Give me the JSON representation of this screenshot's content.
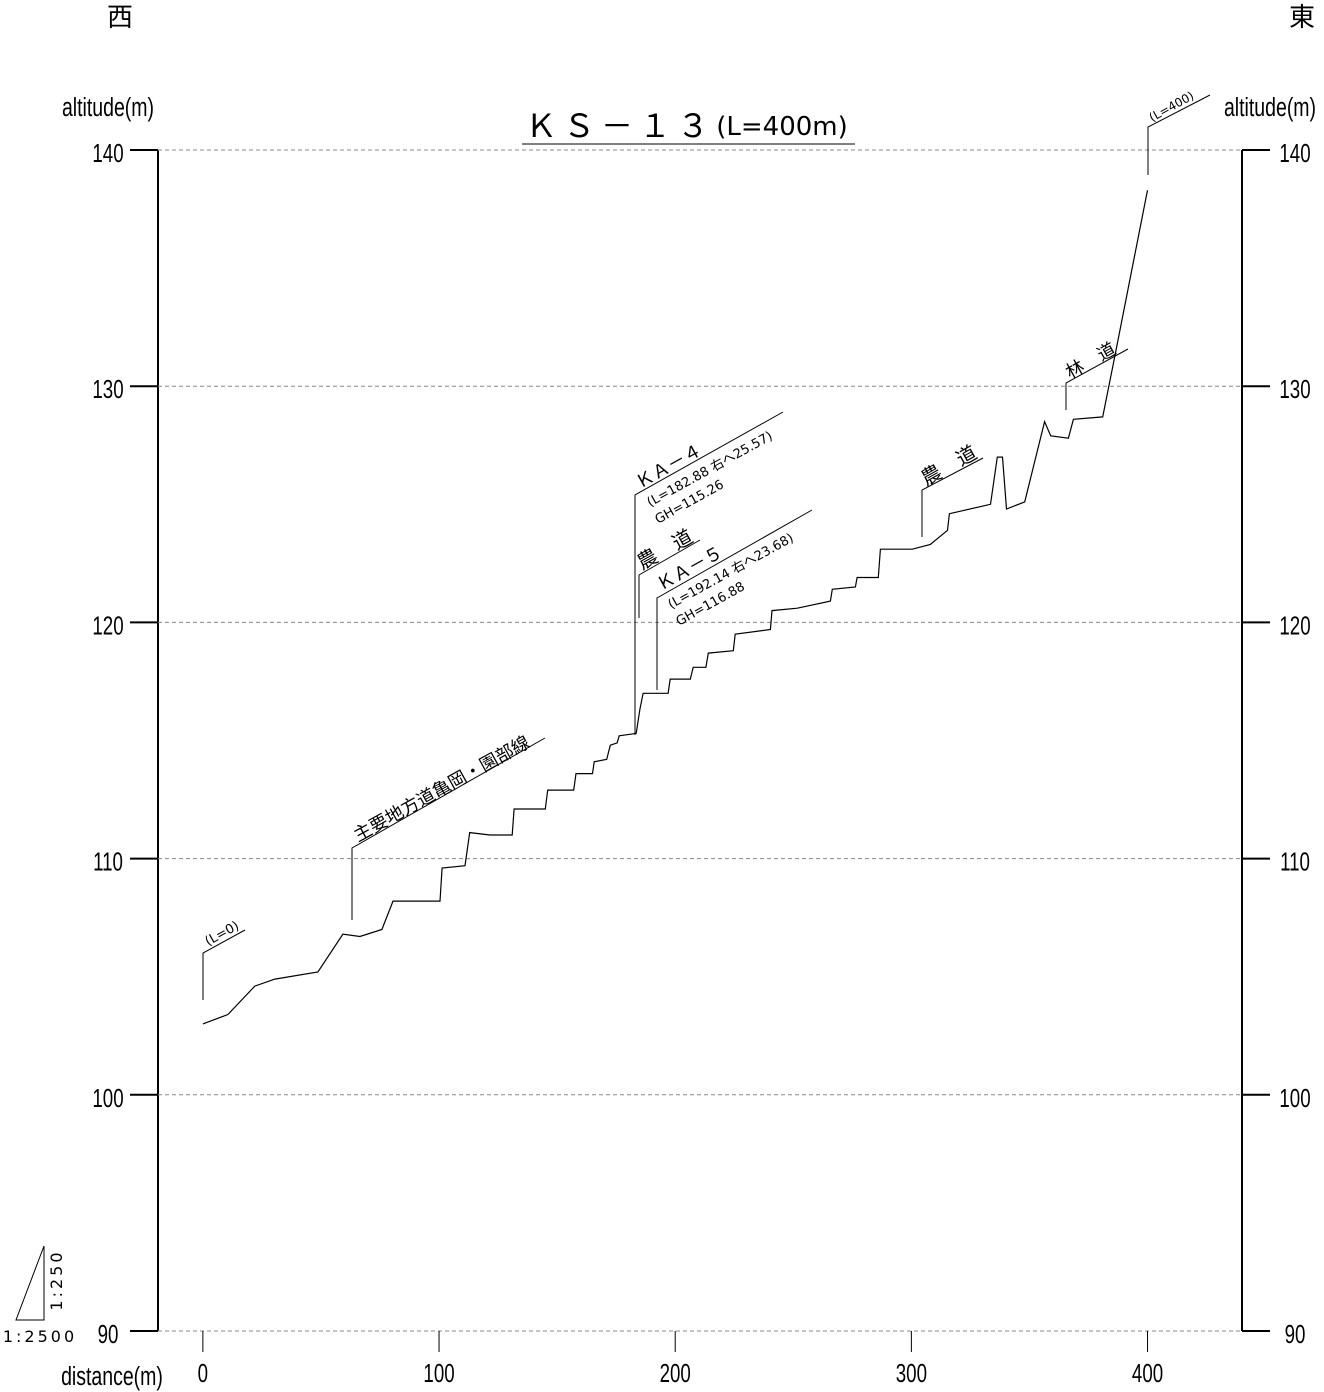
{
  "chart_data": {
    "type": "line",
    "title": "ＫＳ－１３",
    "subtitle": "(L=400m)",
    "west_label": "西",
    "east_label": "東",
    "ylabel": "altitude(m)",
    "y2label": "altitude(m)",
    "xlabel": "distance(m)",
    "scale_vertical": "1:250",
    "scale_horizontal": "1:2500",
    "xlim": [
      -19,
      440
    ],
    "xticks": [
      0,
      100,
      200,
      300,
      400
    ],
    "ylim": [
      90,
      140
    ],
    "yticks": [
      90,
      100,
      110,
      120,
      130,
      140
    ],
    "y2lim": [
      90,
      140
    ],
    "y2ticks": [
      90,
      100,
      110,
      120,
      130,
      140
    ],
    "grid": true,
    "series": [
      {
        "name": "ground",
        "color": "#000000",
        "x": [
          0,
          10.6,
          22,
          30.5,
          48.7,
          59.3,
          66.5,
          75.8,
          80.5,
          100.4,
          101.3,
          111,
          113,
          121.6,
          131,
          131.8,
          145,
          146,
          157,
          158,
          165,
          165.7,
          171,
          172.5,
          175.4,
          176.3,
          183.5,
          185,
          186.4,
          197,
          197.9,
          206.4,
          207.6,
          213,
          214,
          224.6,
          225.4,
          240.3,
          241,
          251.7,
          265.7,
          266.5,
          276.3,
          277,
          286,
          286.9,
          300.4,
          308,
          315.3,
          316.1,
          333.5,
          336.4,
          338.6,
          340.3,
          348,
          356.4,
          359,
          366.5,
          368.6,
          381,
          386,
          400
        ],
        "values": [
          103.0,
          103.4,
          104.6,
          104.9,
          105.2,
          106.8,
          106.7,
          107.0,
          108.2,
          108.2,
          109.6,
          109.7,
          111.1,
          111.0,
          111.0,
          112.1,
          112.1,
          112.9,
          112.9,
          113.6,
          113.6,
          114.1,
          114.2,
          114.8,
          114.9,
          115.2,
          115.3,
          116.3,
          117.0,
          117.0,
          117.6,
          117.6,
          118.1,
          118.1,
          118.7,
          118.8,
          119.5,
          119.7,
          120.5,
          120.6,
          120.9,
          121.4,
          121.5,
          121.9,
          121.9,
          123.1,
          123.1,
          123.3,
          123.9,
          124.6,
          125.0,
          127.0,
          127.0,
          124.8,
          125.1,
          128.5,
          127.9,
          127.8,
          128.6,
          128.7,
          131.2,
          138.3
        ]
      }
    ],
    "annotations": [
      "(L=0)",
      "主要地方道亀岡・園部線",
      "ＫＡ－４",
      "(L=182.88 右へ25.57)",
      "GH=115.26",
      "農　道",
      "ＫＡ－５",
      "(L=192.14 右へ23.68)",
      "GH=116.88",
      "農　道",
      "林　道",
      "(L=400)"
    ]
  }
}
